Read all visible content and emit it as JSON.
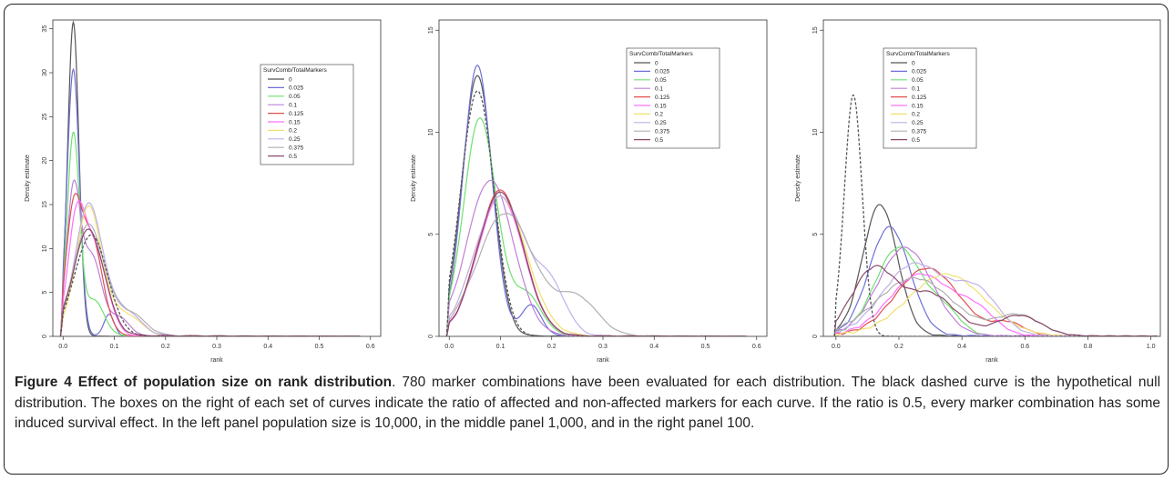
{
  "caption": {
    "figure_label": "Figure 4",
    "title": "Effect of population size on rank distribution",
    "text": ". 780 marker combinations have been evaluated for each distribution. The black dashed curve is the hypothetical null distribution. The boxes on the right of each set of curves indicate the ratio of affected and non-affected markers for each curve. If the ratio is 0.5, every marker combination has some induced survival effect. In the left panel population size is 10,000, in the middle panel 1,000, and in the right panel 100."
  },
  "chart_data": [
    {
      "type": "line",
      "panel": "left",
      "xlabel": "rank",
      "ylabel": "Density estimate",
      "xlim": [
        -0.02,
        0.62
      ],
      "ylim": [
        0,
        36
      ],
      "xticks": [
        0.0,
        0.1,
        0.2,
        0.3,
        0.4,
        0.5,
        0.6
      ],
      "yticks": [
        0,
        5,
        10,
        15,
        20,
        25,
        30,
        35
      ],
      "legend_title": "SurvComb/TotalMarkers",
      "legend_position": "top-right",
      "series": [
        {
          "name": "0",
          "color": "#555555",
          "peaks": [
            [
              0.02,
              35.6,
              0.011
            ]
          ],
          "tail": 0.03
        },
        {
          "name": "0.025",
          "color": "#6f6fd8",
          "peaks": [
            [
              0.02,
              30.2,
              0.012
            ],
            [
              0.09,
              2.5,
              0.01
            ]
          ],
          "tail": 0.05
        },
        {
          "name": "0.05",
          "color": "#6fe06f",
          "peaks": [
            [
              0.02,
              22.5,
              0.012
            ],
            [
              0.06,
              4.0,
              0.02
            ]
          ],
          "tail": 0.08
        },
        {
          "name": "0.1",
          "color": "#bf80d8",
          "peaks": [
            [
              0.02,
              15.5,
              0.013
            ],
            [
              0.055,
              9.0,
              0.02
            ],
            [
              0.11,
              2.0,
              0.02
            ]
          ],
          "tail": 0.1
        },
        {
          "name": "0.125",
          "color": "#e05050",
          "peaks": [
            [
              0.02,
              12.5,
              0.015
            ],
            [
              0.055,
              11.0,
              0.022
            ]
          ],
          "tail": 0.12
        },
        {
          "name": "0.15",
          "color": "#ff70ff",
          "peaks": [
            [
              0.025,
              11.0,
              0.016
            ],
            [
              0.06,
              10.0,
              0.025
            ]
          ],
          "tail": 0.15
        },
        {
          "name": "0.2",
          "color": "#f0e070",
          "peaks": [
            [
              0.05,
              14.5,
              0.025
            ],
            [
              0.12,
              2.5,
              0.03
            ]
          ],
          "tail": 0.18
        },
        {
          "name": "0.25",
          "color": "#c0b0e8",
          "peaks": [
            [
              0.05,
              14.8,
              0.027
            ],
            [
              0.12,
              2.8,
              0.03
            ]
          ],
          "tail": 0.2
        },
        {
          "name": "0.375",
          "color": "#b0b0b0",
          "peaks": [
            [
              0.05,
              12.5,
              0.03
            ],
            [
              0.13,
              2.5,
              0.03
            ]
          ],
          "tail": 0.2
        },
        {
          "name": "0.5",
          "color": "#8a4a6a",
          "peaks": [
            [
              0.05,
              12.0,
              0.03
            ]
          ],
          "tail": 0.22
        }
      ],
      "null": {
        "color": "#555555",
        "dashed": true,
        "peaks": [
          [
            0.055,
            11.5,
            0.032
          ]
        ]
      }
    },
    {
      "type": "line",
      "panel": "middle",
      "xlabel": "rank",
      "ylabel": "Density estimate",
      "xlim": [
        -0.02,
        0.62
      ],
      "ylim": [
        0,
        15.5
      ],
      "xticks": [
        0.0,
        0.1,
        0.2,
        0.3,
        0.4,
        0.5,
        0.6
      ],
      "yticks": [
        0,
        5,
        10,
        15
      ],
      "legend_title": "SurvComb/TotalMarkers",
      "legend_position": "top-right",
      "series": [
        {
          "name": "0",
          "color": "#555555",
          "peaks": [
            [
              0.055,
              12.7,
              0.03
            ]
          ],
          "tail": 0.12
        },
        {
          "name": "0.025",
          "color": "#6f6fd8",
          "peaks": [
            [
              0.055,
              13.2,
              0.028
            ],
            [
              0.16,
              1.5,
              0.02
            ]
          ],
          "tail": 0.13
        },
        {
          "name": "0.05",
          "color": "#6fe06f",
          "peaks": [
            [
              0.06,
              10.6,
              0.032
            ],
            [
              0.15,
              2.0,
              0.03
            ]
          ],
          "tail": 0.15
        },
        {
          "name": "0.1",
          "color": "#bf80d8",
          "peaks": [
            [
              0.08,
              7.6,
              0.045
            ]
          ],
          "tail": 0.2
        },
        {
          "name": "0.125",
          "color": "#e05050",
          "peaks": [
            [
              0.1,
              7.1,
              0.045
            ]
          ],
          "tail": 0.22
        },
        {
          "name": "0.15",
          "color": "#ff70ff",
          "peaks": [
            [
              0.1,
              6.8,
              0.045
            ]
          ],
          "tail": 0.23
        },
        {
          "name": "0.2",
          "color": "#f0e070",
          "peaks": [
            [
              0.1,
              6.8,
              0.05
            ]
          ],
          "tail": 0.25
        },
        {
          "name": "0.25",
          "color": "#c0b0e8",
          "peaks": [
            [
              0.1,
              6.8,
              0.05
            ],
            [
              0.2,
              2.0,
              0.03
            ]
          ],
          "tail": 0.25
        },
        {
          "name": "0.375",
          "color": "#b0b0b0",
          "peaks": [
            [
              0.11,
              6.0,
              0.055
            ],
            [
              0.25,
              1.8,
              0.04
            ]
          ],
          "tail": 0.3
        },
        {
          "name": "0.5",
          "color": "#8a4a6a",
          "peaks": [
            [
              0.1,
              7.0,
              0.045
            ]
          ],
          "tail": 0.22
        }
      ],
      "null": {
        "color": "#555555",
        "dashed": true,
        "peaks": [
          [
            0.055,
            12.0,
            0.032
          ]
        ]
      }
    },
    {
      "type": "line",
      "panel": "right",
      "xlabel": "rank",
      "ylabel": "Density estimate",
      "xlim": [
        -0.04,
        1.03
      ],
      "ylim": [
        0,
        15.5
      ],
      "xticks": [
        0.0,
        0.2,
        0.4,
        0.6,
        0.8,
        1.0
      ],
      "yticks": [
        0,
        5,
        10,
        15
      ],
      "legend_title": "SurvComb/TotalMarkers",
      "legend_position": "top-right",
      "series": [
        {
          "name": "0",
          "color": "#555555",
          "peaks": [
            [
              0.14,
              6.4,
              0.055
            ]
          ],
          "tail": 0.35
        },
        {
          "name": "0.025",
          "color": "#6f6fd8",
          "peaks": [
            [
              0.17,
              5.3,
              0.065
            ]
          ],
          "tail": 0.4
        },
        {
          "name": "0.05",
          "color": "#6fe06f",
          "peaks": [
            [
              0.2,
              4.3,
              0.075
            ],
            [
              0.35,
              1.0,
              0.05
            ]
          ],
          "tail": 0.45
        },
        {
          "name": "0.1",
          "color": "#bf80d8",
          "peaks": [
            [
              0.22,
              4.3,
              0.085
            ]
          ],
          "tail": 0.45
        },
        {
          "name": "0.125",
          "color": "#e05050",
          "peaks": [
            [
              0.29,
              3.3,
              0.1
            ],
            [
              0.55,
              0.6,
              0.05
            ]
          ],
          "tail": 0.5
        },
        {
          "name": "0.15",
          "color": "#ff70ff",
          "peaks": [
            [
              0.27,
              3.0,
              0.1
            ],
            [
              0.45,
              1.0,
              0.06
            ]
          ],
          "tail": 0.5
        },
        {
          "name": "0.2",
          "color": "#f0e070",
          "peaks": [
            [
              0.35,
              3.0,
              0.12
            ]
          ],
          "tail": 0.6
        },
        {
          "name": "0.25",
          "color": "#c0b0e8",
          "peaks": [
            [
              0.25,
              3.5,
              0.1
            ],
            [
              0.45,
              2.0,
              0.07
            ]
          ],
          "tail": 0.55
        },
        {
          "name": "0.375",
          "color": "#b0b0b0",
          "peaks": [
            [
              0.25,
              2.8,
              0.12
            ],
            [
              0.58,
              1.0,
              0.07
            ]
          ],
          "tail": 0.6
        },
        {
          "name": "0.5",
          "color": "#8a4a6a",
          "peaks": [
            [
              0.12,
              3.2,
              0.07
            ],
            [
              0.3,
              2.0,
              0.08
            ],
            [
              0.58,
              1.0,
              0.07
            ]
          ],
          "tail": 0.6
        }
      ],
      "null": {
        "color": "#555555",
        "dashed": true,
        "peaks": [
          [
            0.055,
            11.8,
            0.028
          ]
        ]
      }
    }
  ]
}
